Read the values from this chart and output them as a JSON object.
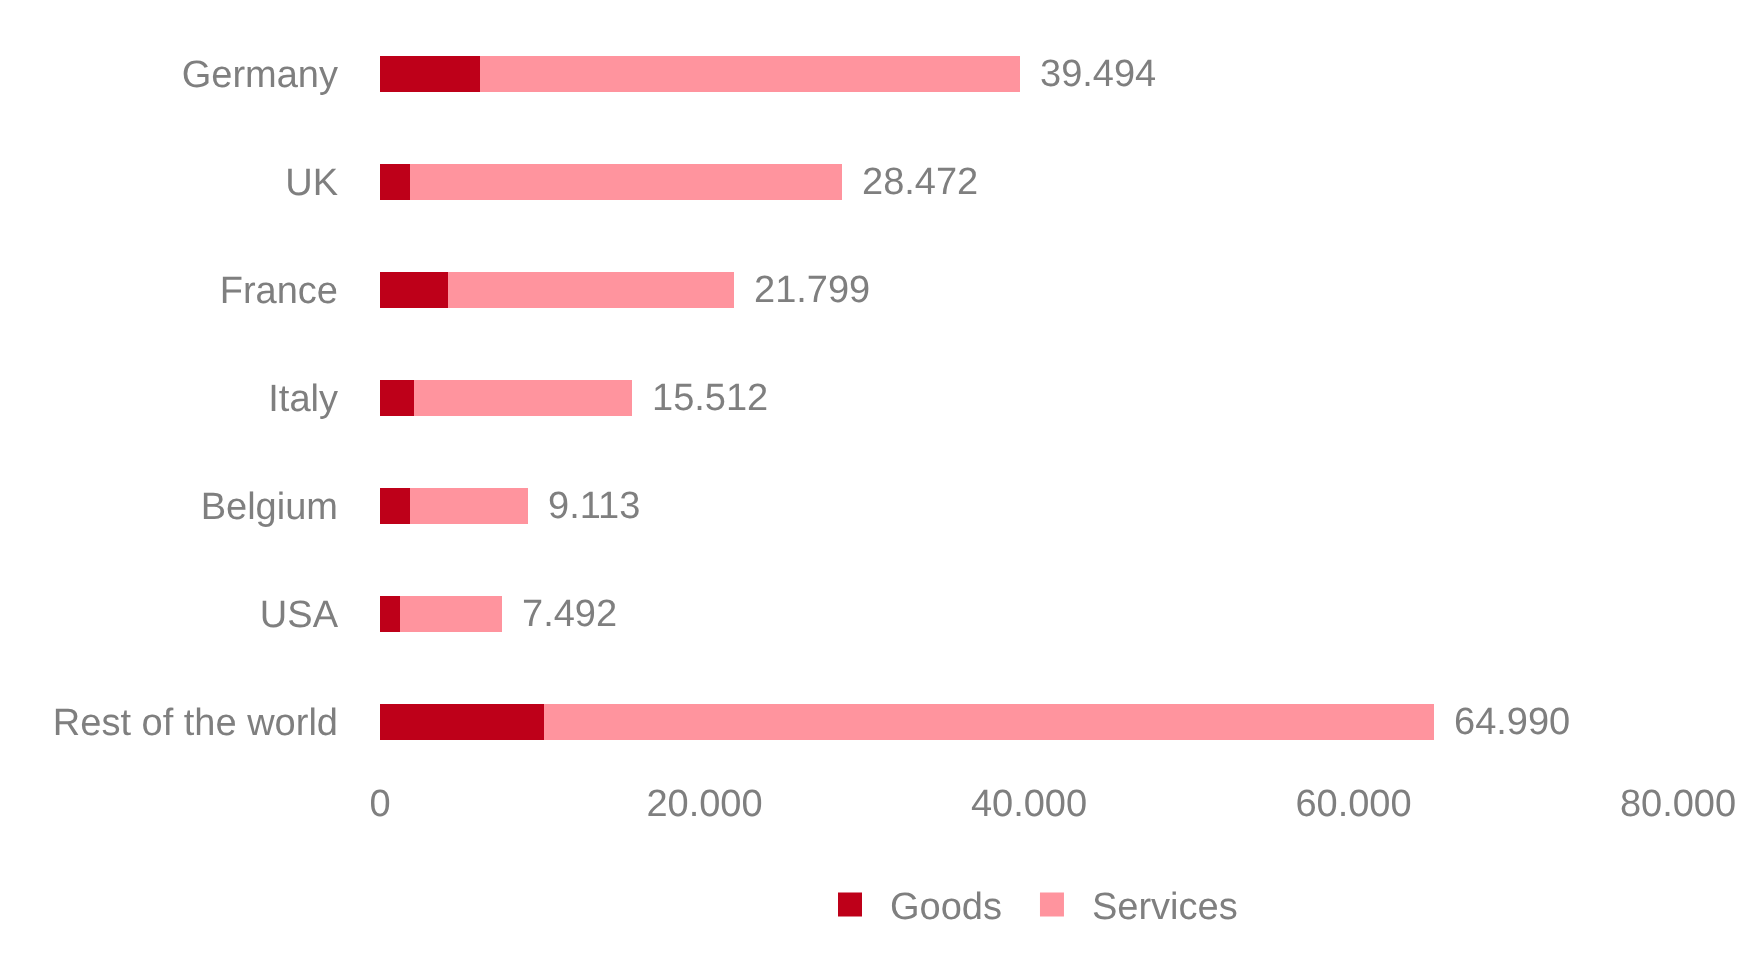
{
  "chart_data": {
    "type": "bar",
    "orientation": "horizontal",
    "stacked": true,
    "categories": [
      "Germany",
      "UK",
      "France",
      "Italy",
      "Belgium",
      "USA",
      "Rest of the world"
    ],
    "series": [
      {
        "name": "Goods",
        "color": "#be0019",
        "values": [
          6200,
          1800,
          4200,
          2100,
          1900,
          1200,
          10100
        ]
      },
      {
        "name": "Services",
        "color": "#ff949e",
        "values": [
          33294,
          26672,
          17599,
          13412,
          7213,
          6292,
          54890
        ]
      }
    ],
    "totals": [
      "39.494",
      "28.472",
      "21.799",
      "15.512",
      "9.113",
      "7.492",
      "64.990"
    ],
    "xlim": [
      0,
      80000
    ],
    "xticks": [
      0,
      {
        "value": 20000,
        "label": "20.000"
      },
      {
        "value": 40000,
        "label": "40.000"
      },
      {
        "value": 60000,
        "label": "60.000"
      },
      {
        "value": 80000,
        "label": "80.000"
      }
    ],
    "legend": "bottom"
  }
}
